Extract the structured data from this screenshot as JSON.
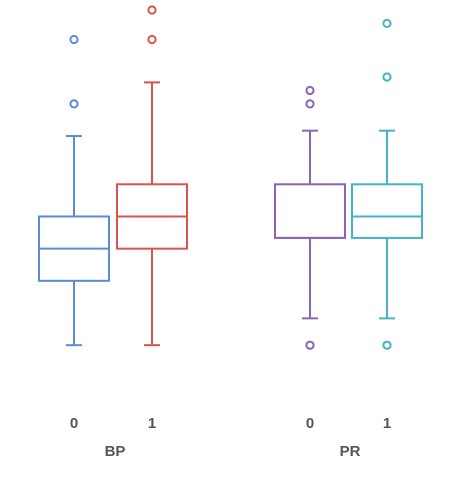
{
  "chart_data": {
    "type": "boxplot",
    "y_range": [
      0,
      13.5
    ],
    "groups": [
      {
        "name": "BP",
        "boxes": [
          {
            "name": "0",
            "color": "#5b8bd6",
            "whisker_low": 1,
            "q1": 3.4,
            "median": 4.6,
            "q3": 5.8,
            "whisker_high": 8.8,
            "outliers": [
              10,
              12.4
            ]
          },
          {
            "name": "1",
            "color": "#d9534f",
            "whisker_low": 1,
            "q1": 4.6,
            "median": 5.8,
            "q3": 7,
            "whisker_high": 10.8,
            "outliers": [
              12.4,
              13.5
            ]
          }
        ]
      },
      {
        "name": "PR",
        "boxes": [
          {
            "name": "0",
            "color": "#8e63b5",
            "whisker_low": 2,
            "q1": 5,
            "median": 5,
            "q3": 7,
            "whisker_high": 9,
            "outliers": [
              1,
              10,
              10.5
            ]
          },
          {
            "name": "1",
            "color": "#44b3c9",
            "whisker_low": 2,
            "q1": 5,
            "median": 5.8,
            "q3": 7,
            "whisker_high": 9,
            "outliers": [
              1,
              11,
              13
            ]
          }
        ]
      }
    ],
    "grid": false,
    "legend": "none"
  }
}
